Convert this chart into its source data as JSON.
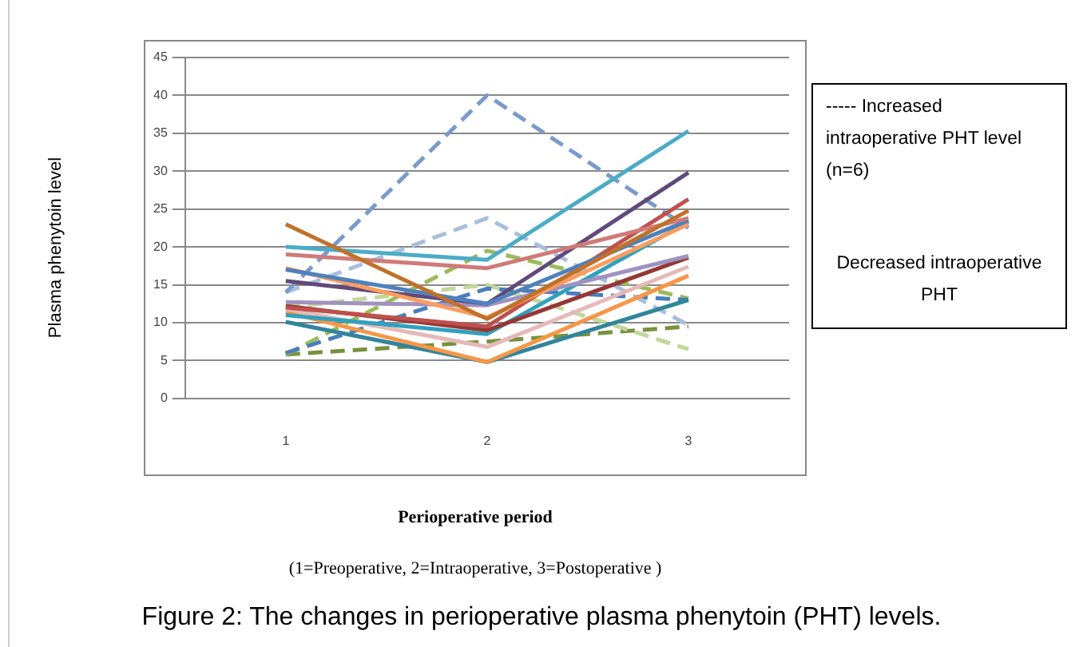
{
  "chart_data": {
    "type": "line",
    "xlabel": "Perioperative period",
    "ylabel": "Plasma phenytoin level",
    "categories": [
      "1",
      "2",
      "3"
    ],
    "ylim": [
      0,
      45
    ],
    "yticks": [
      0,
      5,
      10,
      15,
      20,
      25,
      30,
      35,
      40,
      45
    ],
    "grid": "y",
    "legend": false,
    "marker": "none",
    "series": [
      {
        "color": "#c0712a",
        "values": [
          23,
          10.5,
          24.8
        ],
        "line_style": "solid"
      },
      {
        "color": "#4bacc6",
        "values": [
          20,
          18.3,
          35.3
        ],
        "line_style": "solid"
      },
      {
        "color": "#d07a78",
        "values": [
          19,
          17.2,
          23.8
        ],
        "line_style": "solid"
      },
      {
        "color": "#4f81bd",
        "values": [
          17,
          12.5,
          23.5
        ],
        "line_style": "solid"
      },
      {
        "color": "#fa9d5f",
        "values": [
          17.2,
          10.7,
          23
        ],
        "line_style": "solid"
      },
      {
        "color": "#604a7b",
        "values": [
          15.5,
          12.5,
          29.8
        ],
        "line_style": "solid"
      },
      {
        "color": "#a092c0",
        "values": [
          12.7,
          12.3,
          18.8
        ],
        "line_style": "solid"
      },
      {
        "color": "#c0504d",
        "values": [
          12,
          9.5,
          26.3
        ],
        "line_style": "solid"
      },
      {
        "color": "#953735",
        "values": [
          12.2,
          9,
          18.6
        ],
        "line_style": "solid"
      },
      {
        "color": "#2fa1bd",
        "values": [
          11,
          8.5,
          23.3
        ],
        "line_style": "solid"
      },
      {
        "color": "#e6b9b8",
        "values": [
          11.8,
          6.8,
          17.4
        ],
        "line_style": "solid"
      },
      {
        "color": "#f79646",
        "values": [
          11.4,
          4.8,
          16.2
        ],
        "line_style": "solid"
      },
      {
        "color": "#31859c",
        "values": [
          10.1,
          4.8,
          13
        ],
        "line_style": "solid"
      },
      {
        "color": "#7b9acc",
        "values": [
          14,
          40,
          22.5
        ],
        "line_style": "dashed"
      },
      {
        "color": "#a9bedf",
        "values": [
          14,
          23.8,
          9.7
        ],
        "line_style": "dashed"
      },
      {
        "color": "#4a7ebb",
        "values": [
          6,
          14.5,
          13
        ],
        "line_style": "dashed"
      },
      {
        "color": "#9bbb59",
        "values": [
          5.8,
          19.5,
          13.2
        ],
        "line_style": "dashed"
      },
      {
        "color": "#c3d69b",
        "values": [
          12,
          15,
          6.5
        ],
        "line_style": "dashed"
      },
      {
        "color": "#77933c",
        "values": [
          5.8,
          7.5,
          9.5
        ],
        "line_style": "dashed"
      }
    ],
    "annotations": [
      "----- Increased intraoperative PHT level (n=6)",
      "Decreased intraoperative PHT",
      "(1=Preoperative, 2=Intraoperative, 3=Postoperative )",
      "Figure 2: The changes in perioperative plasma phenytoin (PHT) levels."
    ]
  }
}
